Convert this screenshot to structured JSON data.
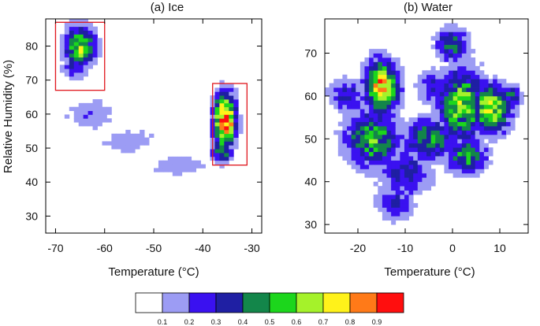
{
  "chart_data": [
    {
      "type": "heatmap",
      "title": "(a) Ice",
      "xlabel": "Temperature (°C)",
      "ylabel": "Relative Humidity (%)",
      "xlim": [
        -72,
        -28
      ],
      "ylim": [
        25,
        88
      ],
      "xticks": [
        -70,
        -60,
        -50,
        -40,
        -30
      ],
      "xtick_labels": [
        "-70",
        "-60",
        "-50",
        "-40",
        "-30"
      ],
      "yticks": [
        30,
        40,
        50,
        60,
        70,
        80
      ],
      "ytick_labels": [
        "30",
        "40",
        "50",
        "60",
        "70",
        "80"
      ],
      "highlight_boxes": [
        {
          "x": [
            -70,
            -60
          ],
          "y": [
            67,
            87
          ]
        },
        {
          "x": [
            -38,
            -31
          ],
          "y": [
            45,
            69
          ]
        }
      ],
      "clusters": [
        {
          "x": -65,
          "y": 80,
          "sx": 2.2,
          "sy": 4.5,
          "peak": 0.62
        },
        {
          "x": -66,
          "y": 74,
          "sx": 2.0,
          "sy": 2.5,
          "peak": 0.3
        },
        {
          "x": -35.5,
          "y": 58,
          "sx": 1.6,
          "sy": 5.5,
          "peak": 0.93
        },
        {
          "x": -36,
          "y": 49,
          "sx": 1.6,
          "sy": 2.5,
          "peak": 0.45
        },
        {
          "x": -63,
          "y": 60,
          "sx": 4.0,
          "sy": 3.5,
          "peak": 0.18
        },
        {
          "x": -55,
          "y": 52,
          "sx": 4.5,
          "sy": 3.0,
          "peak": 0.16
        },
        {
          "x": -45,
          "y": 45,
          "sx": 4.5,
          "sy": 2.5,
          "peak": 0.17
        }
      ]
    },
    {
      "type": "heatmap",
      "title": "(b) Water",
      "xlabel": "Temperature (°C)",
      "ylabel": "",
      "xlim": [
        -27,
        16
      ],
      "ylim": [
        28,
        78
      ],
      "xticks": [
        -20,
        -10,
        0,
        10
      ],
      "xtick_labels": [
        "-20",
        "-10",
        "0",
        "10"
      ],
      "yticks": [
        30,
        40,
        50,
        60,
        70
      ],
      "ytick_labels": [
        "30",
        "40",
        "50",
        "60",
        "70"
      ],
      "highlight_boxes": [],
      "clusters": [
        {
          "x": -15,
          "y": 62,
          "sx": 2.5,
          "sy": 4.5,
          "peak": 0.78
        },
        {
          "x": -17,
          "y": 50,
          "sx": 4.0,
          "sy": 4.5,
          "peak": 0.55
        },
        {
          "x": -5,
          "y": 50,
          "sx": 4.0,
          "sy": 3.5,
          "peak": 0.48
        },
        {
          "x": 2,
          "y": 58,
          "sx": 3.5,
          "sy": 6.0,
          "peak": 0.62
        },
        {
          "x": 0,
          "y": 72,
          "sx": 2.5,
          "sy": 3.0,
          "peak": 0.42
        },
        {
          "x": 8,
          "y": 57,
          "sx": 3.0,
          "sy": 4.0,
          "peak": 0.68
        },
        {
          "x": 12,
          "y": 60,
          "sx": 2.0,
          "sy": 2.0,
          "peak": 0.4
        },
        {
          "x": -10,
          "y": 42,
          "sx": 4.0,
          "sy": 4.0,
          "peak": 0.35
        },
        {
          "x": -22,
          "y": 60,
          "sx": 3.0,
          "sy": 3.0,
          "peak": 0.32
        },
        {
          "x": 3,
          "y": 46,
          "sx": 3.0,
          "sy": 3.0,
          "peak": 0.5
        },
        {
          "x": -12,
          "y": 35,
          "sx": 3.0,
          "sy": 3.0,
          "peak": 0.3
        },
        {
          "x": -4,
          "y": 62,
          "sx": 2.5,
          "sy": 3.0,
          "peak": 0.3
        }
      ]
    }
  ],
  "colorbar": {
    "colors": [
      "#ffffff",
      "#9c9cf4",
      "#3a11f0",
      "#1f1fa3",
      "#13864a",
      "#1cd61c",
      "#a5f22a",
      "#fff21a",
      "#ff7a18",
      "#ff0e0e"
    ],
    "tick_labels": [
      "0.1",
      "0.2",
      "0.3",
      "0.4",
      "0.5",
      "0.6",
      "0.7",
      "0.8",
      "0.9"
    ]
  },
  "box_color": "#e0161d"
}
